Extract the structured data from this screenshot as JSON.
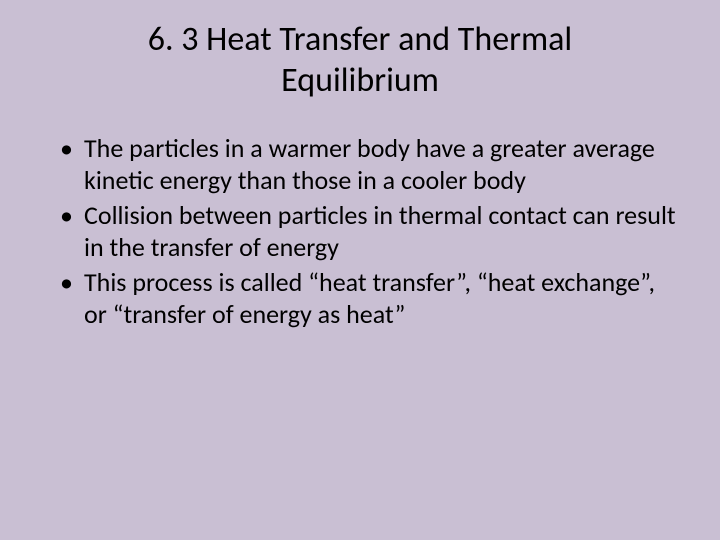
{
  "slide": {
    "background_color": "#c9bfd3",
    "text_color": "#000000",
    "title": "6. 3 Heat Transfer and Thermal Equilibrium",
    "title_fontsize": 34,
    "title_align": "center",
    "body_fontsize": 26,
    "bullets": [
      "The particles in a warmer body have a greater average kinetic energy than those in a cooler body",
      "Collision between particles in thermal contact can result in the transfer of energy",
      "This process is called “heat transfer”, “heat exchange”, or “transfer of energy as heat”"
    ]
  }
}
